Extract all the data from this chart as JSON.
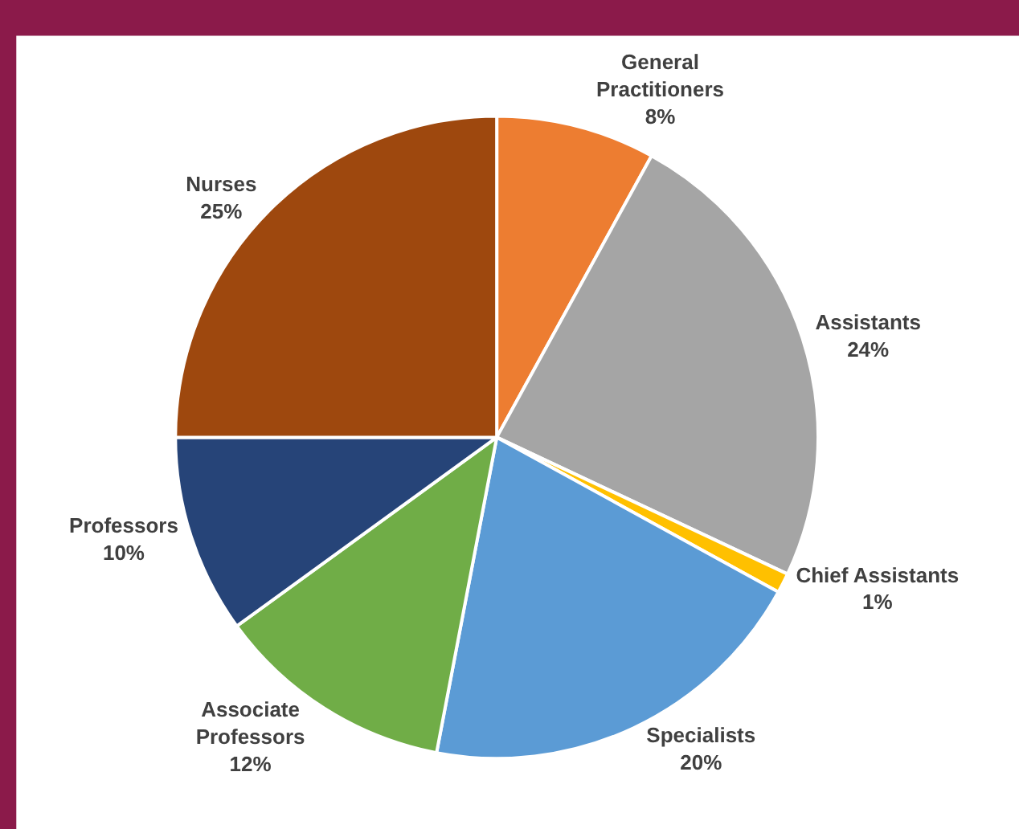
{
  "chart_data": {
    "type": "pie",
    "categories": [
      "General Practitioners",
      "Assistants",
      "Chief Assistants",
      "Specialists",
      "Associate Professors",
      "Professors",
      "Nurses"
    ],
    "values": [
      8,
      24,
      1,
      20,
      12,
      10,
      25
    ],
    "value_labels": [
      "8%",
      "24%",
      "1%",
      "20%",
      "12%",
      "10%",
      "25%"
    ],
    "colors": [
      "#ed7d31",
      "#a5a5a5",
      "#ffc000",
      "#5b9bd5",
      "#70ad47",
      "#264478",
      "#9e480e"
    ],
    "legend": false
  }
}
